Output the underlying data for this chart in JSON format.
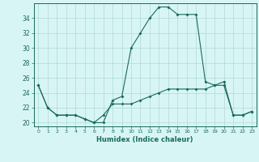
{
  "xlabel": "Humidex (Indice chaleur)",
  "x": [
    0,
    1,
    2,
    3,
    4,
    5,
    6,
    7,
    8,
    9,
    10,
    11,
    12,
    13,
    14,
    15,
    16,
    17,
    18,
    19,
    20,
    21,
    22,
    23
  ],
  "line1": [
    25,
    22,
    21,
    21,
    21,
    20.5,
    20,
    20,
    23,
    23.5,
    30,
    32,
    34,
    35.5,
    35.5,
    34.5,
    34.5,
    34.5,
    25.5,
    25,
    25.5,
    21,
    21,
    21.5
  ],
  "line2": [
    25,
    22,
    21,
    21,
    21,
    20.5,
    20,
    21,
    22.5,
    22.5,
    22.5,
    23,
    23.5,
    24,
    24.5,
    24.5,
    24.5,
    24.5,
    24.5,
    25,
    25,
    21,
    21,
    21.5
  ],
  "line_color": "#1a6b5a",
  "bg_color": "#d8f5f5",
  "grid_color": "#b0d8d8",
  "ylim": [
    19.5,
    36
  ],
  "yticks": [
    20,
    22,
    24,
    26,
    28,
    30,
    32,
    34
  ],
  "xlim": [
    -0.5,
    23.5
  ]
}
